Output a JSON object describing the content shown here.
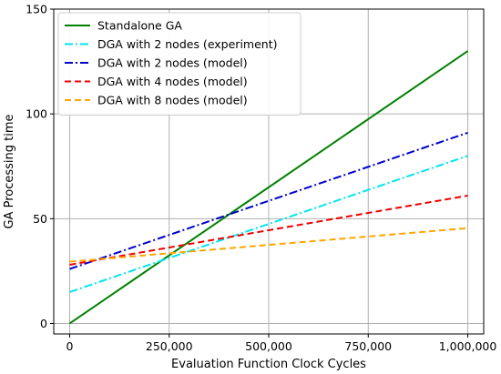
{
  "chart_data": {
    "type": "line",
    "xlabel": "Evaluation Function Clock Cycles",
    "ylabel": "GA Processing time",
    "xlim": [
      -40000,
      1040000
    ],
    "ylim": [
      -5,
      150
    ],
    "xticks": [
      0,
      250000,
      500000,
      750000,
      1000000
    ],
    "xtick_labels": [
      "0",
      "250,000",
      "500,000",
      "750,000",
      "1,000,000"
    ],
    "yticks": [
      0,
      50,
      100,
      150
    ],
    "ytick_labels": [
      "0",
      "50",
      "100",
      "150"
    ],
    "grid": true,
    "legend_position": "upper-left",
    "series": [
      {
        "name": "Standalone GA",
        "color": "#008000",
        "dash": "solid",
        "x": [
          0,
          1000000
        ],
        "y": [
          0,
          130
        ]
      },
      {
        "name": "DGA with 2 nodes (experiment)",
        "color": "#00e5ee",
        "dash": "dashdot",
        "x": [
          0,
          1000000
        ],
        "y": [
          15,
          80
        ]
      },
      {
        "name": "DGA with 2 nodes (model)",
        "color": "#0000cc",
        "dash": "dashdot",
        "x": [
          0,
          1000000
        ],
        "y": [
          26,
          91
        ]
      },
      {
        "name": "DGA with 4 nodes (model)",
        "color": "#ee0000",
        "dash": "dashed",
        "x": [
          0,
          1000000
        ],
        "y": [
          28,
          61
        ]
      },
      {
        "name": "DGA with 8 nodes (model)",
        "color": "#ffa500",
        "dash": "dashed",
        "x": [
          0,
          1000000
        ],
        "y": [
          29.5,
          45.5
        ]
      }
    ]
  }
}
